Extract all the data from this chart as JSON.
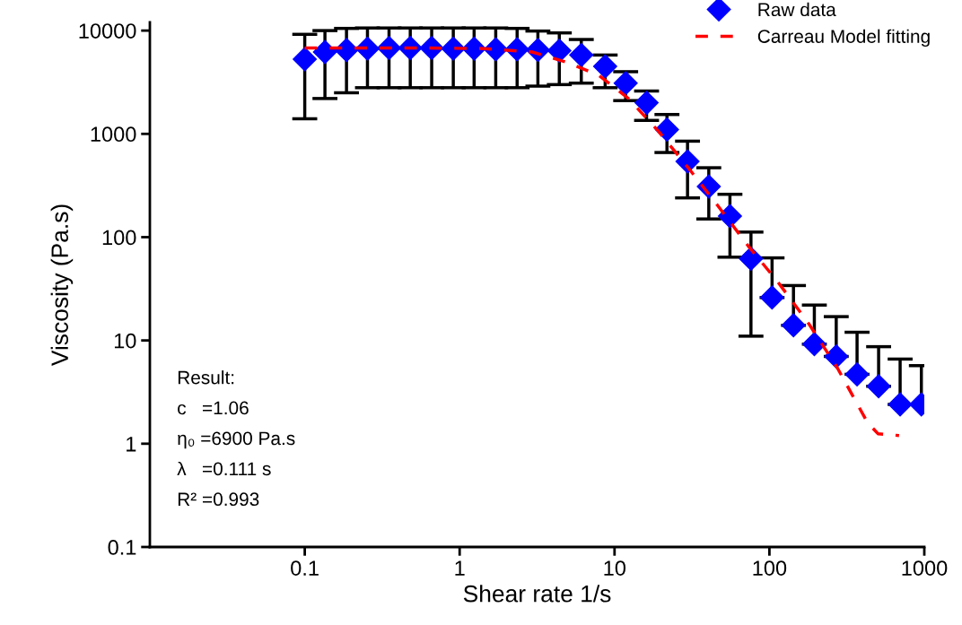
{
  "chart_data": {
    "type": "scatter",
    "xlabel": "Shear rate 1/s",
    "ylabel": "Viscosity (Pa.s)",
    "log": "xy",
    "xlim": [
      0.01,
      1000
    ],
    "xticks": [
      0.1,
      1,
      10,
      100,
      1000
    ],
    "ylim": [
      0.1,
      12000
    ],
    "yticks": [
      0.1,
      1,
      10,
      100,
      1000,
      10000
    ],
    "grid": false,
    "legend": "top right",
    "series": [
      {
        "name": "Raw data",
        "marker": "diamond",
        "color": "#0000ff",
        "x": [
          0.1,
          0.135,
          0.186,
          0.254,
          0.35,
          0.48,
          0.66,
          0.91,
          1.24,
          1.71,
          2.35,
          3.2,
          4.4,
          6.1,
          8.7,
          11.8,
          16.1,
          21.8,
          29.6,
          40.6,
          55.6,
          76,
          104,
          143,
          195,
          270,
          368,
          507,
          698,
          957
        ],
        "values": [
          5300,
          6200,
          6500,
          6700,
          6800,
          6800,
          6800,
          6700,
          6700,
          6600,
          6600,
          6500,
          6400,
          5800,
          4500,
          3100,
          2000,
          1100,
          540,
          310,
          160,
          62,
          26,
          14,
          9.2,
          7.0,
          4.7,
          3.6,
          2.4,
          2.4
        ],
        "errors": [
          [
            1400,
            9200
          ],
          [
            2200,
            10000
          ],
          [
            2500,
            10500
          ],
          [
            2800,
            10600
          ],
          [
            2800,
            10600
          ],
          [
            2800,
            10600
          ],
          [
            2800,
            10600
          ],
          [
            2800,
            10600
          ],
          [
            2800,
            10600
          ],
          [
            2800,
            10600
          ],
          [
            2800,
            10500
          ],
          [
            2900,
            9900
          ],
          [
            3000,
            9500
          ],
          [
            3100,
            8200
          ],
          [
            2800,
            5800
          ],
          [
            2100,
            4000
          ],
          [
            1350,
            2600
          ],
          [
            660,
            1540
          ],
          [
            240,
            850
          ],
          [
            150,
            470
          ],
          [
            64,
            260
          ],
          [
            11,
            112
          ],
          [
            26,
            63
          ],
          [
            14,
            34
          ],
          [
            9.2,
            22
          ],
          [
            7.0,
            17
          ],
          [
            4.7,
            12
          ],
          [
            3.6,
            8.7
          ],
          [
            2.4,
            6.6
          ],
          [
            2.4,
            5.7
          ]
        ]
      },
      {
        "name": "Carreau Model fitting",
        "type": "line",
        "line_style": "dashed",
        "marker": "none",
        "color": "#ff0000",
        "x": [
          0.1,
          0.48,
          1.45,
          2.94,
          5.0,
          7.9,
          12.3,
          19.1,
          29.9,
          46.6,
          72.6,
          113,
          177,
          275,
          430,
          502,
          687
        ],
        "values": [
          6800,
          6800,
          6700,
          6200,
          4900,
          3700,
          2200,
          1070,
          470,
          200,
          83,
          37,
          15,
          5.4,
          1.6,
          1.25,
          1.2
        ]
      }
    ],
    "annotations": [
      "Result:",
      "c   =1.06",
      "η₀ =6900 Pa.s",
      "λ   =0.111 s",
      "R² =0.993"
    ]
  }
}
